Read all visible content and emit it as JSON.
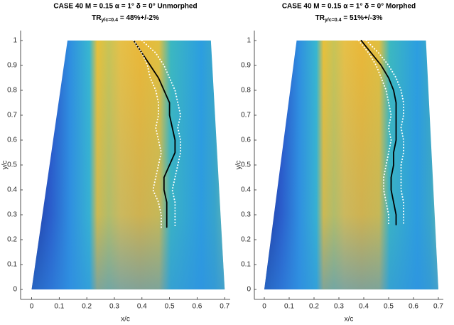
{
  "chart_data": [
    {
      "type": "line",
      "title": "CASE  40  M = 0.15  α = 1°  δ = 0°  Unmorphed",
      "subtitle_parts": [
        "TR",
        "y/c=0.4",
        " = 48%+/-2%"
      ],
      "xlabel": "x/c",
      "ylabel": "y/c",
      "xlim": [
        -0.04,
        0.72
      ],
      "ylim": [
        -0.04,
        1.04
      ],
      "xticks": [
        0,
        0.1,
        0.2,
        0.3,
        0.4,
        0.5,
        0.6,
        0.7
      ],
      "yticks": [
        0,
        0.1,
        0.2,
        0.3,
        0.4,
        0.5,
        0.6,
        0.7,
        0.8,
        0.9,
        1
      ],
      "series": [
        {
          "color": "#000000",
          "style": "solid",
          "x": [
            0.37,
            0.4,
            0.43,
            0.46,
            0.48,
            0.5,
            0.5,
            0.51,
            0.52,
            0.52,
            0.5,
            0.48,
            0.48,
            0.49,
            0.49,
            0.49
          ],
          "values": [
            1,
            0.95,
            0.9,
            0.85,
            0.8,
            0.75,
            0.7,
            0.65,
            0.6,
            0.55,
            0.5,
            0.45,
            0.4,
            0.35,
            0.3,
            0.25
          ]
        },
        {
          "color": "#ffffff",
          "style": "dotted",
          "x": [
            0.37,
            0.4,
            0.42,
            0.43,
            0.45,
            0.46,
            0.46,
            0.45,
            0.46,
            0.47,
            0.46,
            0.45,
            0.44,
            0.46,
            0.47,
            0.47
          ],
          "values": [
            1,
            0.95,
            0.9,
            0.85,
            0.8,
            0.75,
            0.7,
            0.65,
            0.6,
            0.55,
            0.5,
            0.45,
            0.4,
            0.35,
            0.3,
            0.25
          ]
        },
        {
          "color": "#ffffff",
          "style": "dotted",
          "x": [
            0.4,
            0.45,
            0.48,
            0.5,
            0.52,
            0.53,
            0.54,
            0.53,
            0.54,
            0.54,
            0.53,
            0.52,
            0.51,
            0.52,
            0.52,
            0.52
          ],
          "values": [
            1,
            0.95,
            0.9,
            0.85,
            0.8,
            0.75,
            0.7,
            0.65,
            0.6,
            0.55,
            0.5,
            0.45,
            0.4,
            0.35,
            0.3,
            0.25
          ]
        }
      ]
    },
    {
      "type": "line",
      "title": "CASE  40  M = 0.15  α = 1°  δ = 0°  Morphed",
      "subtitle_parts": [
        "TR",
        "y/c=0.4",
        " = 51%+/-3%"
      ],
      "xlabel": "x/c",
      "ylabel": "y/c",
      "xlim": [
        -0.04,
        0.72
      ],
      "ylim": [
        -0.04,
        1.04
      ],
      "xticks": [
        0,
        0.1,
        0.2,
        0.3,
        0.4,
        0.5,
        0.6,
        0.7
      ],
      "yticks": [
        0,
        0.1,
        0.2,
        0.3,
        0.4,
        0.5,
        0.6,
        0.7,
        0.8,
        0.9,
        1
      ],
      "series": [
        {
          "color": "#000000",
          "style": "solid",
          "x": [
            0.39,
            0.43,
            0.47,
            0.5,
            0.52,
            0.53,
            0.53,
            0.53,
            0.53,
            0.52,
            0.52,
            0.51,
            0.51,
            0.52,
            0.53,
            0.53
          ],
          "values": [
            1,
            0.95,
            0.9,
            0.85,
            0.8,
            0.75,
            0.7,
            0.65,
            0.6,
            0.55,
            0.5,
            0.45,
            0.4,
            0.35,
            0.3,
            0.26
          ]
        },
        {
          "color": "#ffffff",
          "style": "dotted",
          "x": [
            0.38,
            0.42,
            0.45,
            0.47,
            0.49,
            0.5,
            0.51,
            0.5,
            0.51,
            0.5,
            0.49,
            0.48,
            0.48,
            0.49,
            0.5,
            0.5
          ],
          "values": [
            1,
            0.95,
            0.9,
            0.85,
            0.8,
            0.75,
            0.7,
            0.65,
            0.6,
            0.55,
            0.5,
            0.45,
            0.4,
            0.35,
            0.3,
            0.26
          ]
        },
        {
          "color": "#ffffff",
          "style": "dotted",
          "x": [
            0.41,
            0.46,
            0.5,
            0.53,
            0.55,
            0.56,
            0.56,
            0.55,
            0.56,
            0.56,
            0.55,
            0.55,
            0.55,
            0.56,
            0.56,
            0.56
          ],
          "values": [
            1,
            0.95,
            0.9,
            0.85,
            0.8,
            0.75,
            0.7,
            0.65,
            0.6,
            0.55,
            0.5,
            0.45,
            0.4,
            0.35,
            0.3,
            0.26
          ]
        }
      ]
    }
  ]
}
